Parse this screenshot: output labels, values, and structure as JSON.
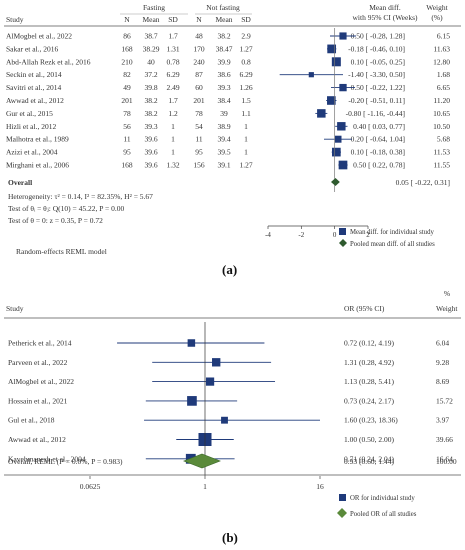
{
  "colors": {
    "marker": "#1f3a7a",
    "diamond_a": "#2e5a2e",
    "diamond_b": "#5a8a3a",
    "line": "#1f3a7a",
    "ref": "#777777"
  },
  "panel_a": {
    "label": "(a)",
    "header": {
      "study": "Study",
      "group1": "Fasting",
      "group2": "Not fasting",
      "n": "N",
      "mean": "Mean",
      "sd": "SD",
      "effect1": "Mean diff.",
      "effect2": "with 95% CI (Weeks)",
      "weight1": "Weight",
      "weight2": "(%)"
    },
    "overall_label": "Overall",
    "overall_ci": "0.05 [ -0.22,   0.31]",
    "heterogeneity": "Heterogeneity: τ² = 0.14, I² = 82.35%, H² = 5.67",
    "test1": "Test of θᵢ = θⱼ: Q(10) = 45.22, P = 0.00",
    "test2": "Test of θ = 0: z = 0.35, P = 0.72",
    "model": "Random-effects REML model",
    "legend1": "Mean diff. for individual study",
    "legend2": "Pooled mean diff. of all studies"
  },
  "panel_b": {
    "label": "(b)",
    "header": {
      "pct": "%",
      "study": "Study",
      "effect": "OR (95% CI)",
      "weight": "Weight"
    },
    "overall_label": "Overall, REML (I² = 0.0%, P = 0.983)",
    "overall_ci": "0.93 (0.60, 1.44)",
    "overall_weight": "100.00",
    "legend1": "OR for individual study",
    "legend2": "Pooled OR of all studies"
  },
  "chart_data": [
    {
      "type": "forest",
      "effect_measure": "Mean diff. with 95% CI (Weeks)",
      "xlim": [
        -4,
        2
      ],
      "xticks": [
        -4,
        -2,
        0,
        2
      ],
      "reference_line": 0,
      "studies": [
        {
          "name": "AlMogbel et al., 2022",
          "n1": "86",
          "m1": "38.7",
          "sd1": "1.7",
          "n2": "48",
          "m2": "38.2",
          "sd2": "2.9",
          "est": 0.5,
          "lo": -0.28,
          "hi": 1.28,
          "ci_text": "0.50 [ -0.28,   1.28]",
          "weight": "6.15"
        },
        {
          "name": "Sakar et al., 2016",
          "n1": "168",
          "m1": "38.29",
          "sd1": "1.31",
          "n2": "170",
          "m2": "38.47",
          "sd2": "1.27",
          "est": -0.18,
          "lo": -0.46,
          "hi": 0.1,
          "ci_text": "-0.18 [ -0.46,   0.10]",
          "weight": "11.63"
        },
        {
          "name": "Abd-Allah Rezk  et al., 2016",
          "n1": "210",
          "m1": "40",
          "sd1": "0.78",
          "n2": "240",
          "m2": "39.9",
          "sd2": "0.8",
          "est": 0.1,
          "lo": -0.05,
          "hi": 0.25,
          "ci_text": "0.10 [ -0.05,   0.25]",
          "weight": "12.80"
        },
        {
          "name": "Seckin et al., 2014",
          "n1": "82",
          "m1": "37.2",
          "sd1": "6.29",
          "n2": "87",
          "m2": "38.6",
          "sd2": "6.29",
          "est": -1.4,
          "lo": -3.3,
          "hi": 0.5,
          "ci_text": "-1.40 [ -3.30,   0.50]",
          "weight": "1.68"
        },
        {
          "name": "Savitri et al., 2014",
          "n1": "49",
          "m1": "39.8",
          "sd1": "2.49",
          "n2": "60",
          "m2": "39.3",
          "sd2": "1.26",
          "est": 0.5,
          "lo": -0.22,
          "hi": 1.22,
          "ci_text": "0.50 [ -0.22,   1.22]",
          "weight": "6.65"
        },
        {
          "name": "Awwad et al., 2012",
          "n1": "201",
          "m1": "38.2",
          "sd1": "1.7",
          "n2": "201",
          "m2": "38.4",
          "sd2": "1.5",
          "est": -0.2,
          "lo": -0.51,
          "hi": 0.11,
          "ci_text": "-0.20 [ -0.51,   0.11]",
          "weight": "11.20"
        },
        {
          "name": "Gur et al., 2015",
          "n1": "78",
          "m1": "38.2",
          "sd1": "1.2",
          "n2": "78",
          "m2": "39",
          "sd2": "1.1",
          "est": -0.8,
          "lo": -1.16,
          "hi": -0.44,
          "ci_text": "-0.80 [ -1.16,  -0.44]",
          "weight": "10.65"
        },
        {
          "name": "Hizli et al., 2012",
          "n1": "56",
          "m1": "39.3",
          "sd1": "1",
          "n2": "54",
          "m2": "38.9",
          "sd2": "1",
          "est": 0.4,
          "lo": 0.03,
          "hi": 0.77,
          "ci_text": "0.40 [  0.03,   0.77]",
          "weight": "10.50"
        },
        {
          "name": "Malhotra et al., 1989",
          "n1": "11",
          "m1": "39.6",
          "sd1": "1",
          "n2": "11",
          "m2": "39.4",
          "sd2": "1",
          "est": 0.2,
          "lo": -0.64,
          "hi": 1.04,
          "ci_text": "0.20 [ -0.64,   1.04]",
          "weight": "5.68"
        },
        {
          "name": "Azizi et al., 2004",
          "n1": "95",
          "m1": "39.6",
          "sd1": "1",
          "n2": "95",
          "m2": "39.5",
          "sd2": "1",
          "est": 0.1,
          "lo": -0.18,
          "hi": 0.38,
          "ci_text": "0.10 [ -0.18,   0.38]",
          "weight": "11.53"
        },
        {
          "name": "Mirghani et al., 2006",
          "n1": "168",
          "m1": "39.6",
          "sd1": "1.32",
          "n2": "156",
          "m2": "39.1",
          "sd2": "1.27",
          "est": 0.5,
          "lo": 0.22,
          "hi": 0.78,
          "ci_text": "0.50 [  0.22,   0.78]",
          "weight": "11.55"
        }
      ],
      "pooled": {
        "est": 0.05,
        "lo": -0.22,
        "hi": 0.31
      }
    },
    {
      "type": "forest",
      "effect_measure": "OR (95% CI)",
      "scale": "log",
      "xlim": [
        0.0625,
        16
      ],
      "xticks": [
        0.0625,
        1,
        16
      ],
      "xtick_labels": [
        "0.0625",
        "1",
        "16"
      ],
      "reference_line": 1,
      "studies": [
        {
          "name": "Petherick et al., 2014",
          "est": 0.72,
          "lo": 0.12,
          "hi": 4.19,
          "ci_text": "0.72 (0.12, 4.19)",
          "weight": "6.04"
        },
        {
          "name": "Parveen et al., 2022",
          "est": 1.31,
          "lo": 0.28,
          "hi": 4.92,
          "ci_text": "1.31 (0.28, 4.92)",
          "weight": "9.28"
        },
        {
          "name": "AlMogbel et al., 2022",
          "est": 1.13,
          "lo": 0.28,
          "hi": 5.41,
          "ci_text": "1.13 (0.28, 5.41)",
          "weight": "8.69"
        },
        {
          "name": "Hossain et al., 2021",
          "est": 0.73,
          "lo": 0.24,
          "hi": 2.17,
          "ci_text": "0.73 (0.24, 2.17)",
          "weight": "15.72"
        },
        {
          "name": "Gul et al., 2018",
          "est": 1.6,
          "lo": 0.23,
          "hi": 18.36,
          "ci_text": "1.60 (0.23, 18.36)",
          "weight": "3.97"
        },
        {
          "name": "Awwad et al., 2012",
          "est": 1.0,
          "lo": 0.5,
          "hi": 2.0,
          "ci_text": "1.00 (0.50, 2.00)",
          "weight": "39.66"
        },
        {
          "name": "Kavehmanesh et al., 2004",
          "est": 0.71,
          "lo": 0.24,
          "hi": 2.04,
          "ci_text": "0.71 (0.24, 2.04)",
          "weight": "16.64"
        }
      ],
      "pooled": {
        "est": 0.93,
        "lo": 0.6,
        "hi": 1.44
      }
    }
  ]
}
